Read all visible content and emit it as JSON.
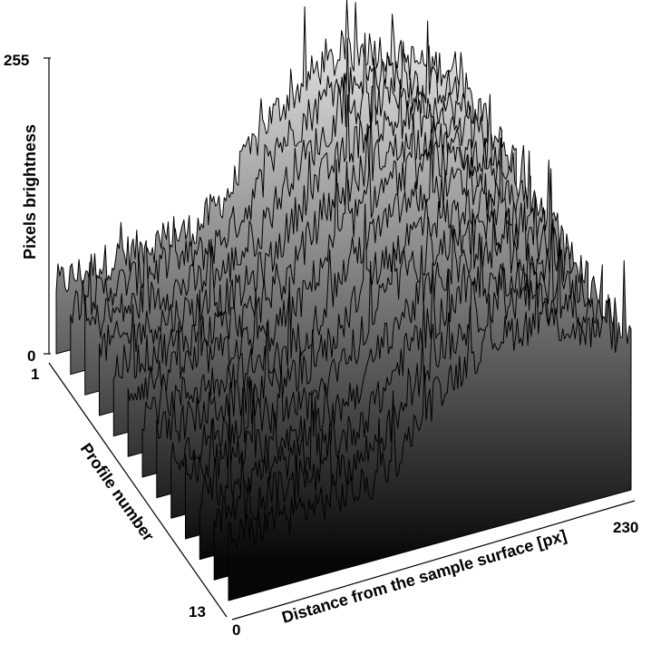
{
  "chart_data": {
    "type": "waterfall",
    "title": "",
    "zlabel": "Pixels brightness",
    "ylabel": "Profile number",
    "xlabel": "Distance from the sample surface [px]",
    "zlim": [
      0,
      255
    ],
    "ylim": [
      1,
      13
    ],
    "xlim": [
      0,
      230
    ],
    "z_ticks": [
      "0",
      "255"
    ],
    "y_ticks": [
      "1",
      "13"
    ],
    "x_ticks": [
      "0",
      "230"
    ],
    "profile_count": 13,
    "samples_per_profile": 231,
    "profile_shape": {
      "x_breakpoints": [
        0,
        40,
        80,
        100,
        120,
        150,
        180,
        200,
        230
      ],
      "mean_brightness": [
        60,
        70,
        75,
        100,
        150,
        185,
        190,
        170,
        150
      ]
    },
    "grid": false,
    "legend": "none"
  }
}
